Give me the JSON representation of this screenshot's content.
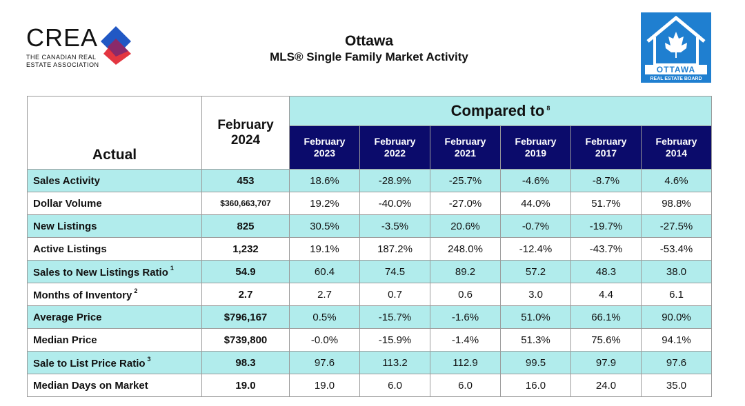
{
  "header": {
    "logo_left": {
      "name": "CREA",
      "tagline_1": "THE CANADIAN REAL",
      "tagline_2": "ESTATE ASSOCIATION"
    },
    "title": "Ottawa",
    "subtitle": "MLS® Single Family Market Activity",
    "logo_right": {
      "name": "OTTAWA",
      "tagline": "REAL ESTATE BOARD"
    }
  },
  "table": {
    "actual_label": "Actual",
    "current": {
      "month": "February",
      "year": "2024"
    },
    "compared_label": "Compared to",
    "compared_note": "8",
    "periods": [
      {
        "month": "February",
        "year": "2023"
      },
      {
        "month": "February",
        "year": "2022"
      },
      {
        "month": "February",
        "year": "2021"
      },
      {
        "month": "February",
        "year": "2019"
      },
      {
        "month": "February",
        "year": "2017"
      },
      {
        "month": "February",
        "year": "2014"
      }
    ],
    "rows": [
      {
        "label": "Sales Activity",
        "current": "453",
        "values": [
          "18.6%",
          "-28.9%",
          "-25.7%",
          "-4.6%",
          "-8.7%",
          "4.6%"
        ]
      },
      {
        "label": "Dollar Volume",
        "current": "$360,663,707",
        "values": [
          "19.2%",
          "-40.0%",
          "-27.0%",
          "44.0%",
          "51.7%",
          "98.8%"
        ]
      },
      {
        "label": "New Listings",
        "current": "825",
        "values": [
          "30.5%",
          "-3.5%",
          "20.6%",
          "-0.7%",
          "-19.7%",
          "-27.5%"
        ]
      },
      {
        "label": "Active Listings",
        "current": "1,232",
        "values": [
          "19.1%",
          "187.2%",
          "248.0%",
          "-12.4%",
          "-43.7%",
          "-53.4%"
        ]
      },
      {
        "label": "Sales to New Listings Ratio",
        "note": "1",
        "current": "54.9",
        "values": [
          "60.4",
          "74.5",
          "89.2",
          "57.2",
          "48.3",
          "38.0"
        ]
      },
      {
        "label": "Months of Inventory",
        "note": "2",
        "current": "2.7",
        "values": [
          "2.7",
          "0.7",
          "0.6",
          "3.0",
          "4.4",
          "6.1"
        ]
      },
      {
        "label": "Average Price",
        "current": "$796,167",
        "values": [
          "0.5%",
          "-15.7%",
          "-1.6%",
          "51.0%",
          "66.1%",
          "90.0%"
        ]
      },
      {
        "label": "Median Price",
        "current": "$739,800",
        "values": [
          "-0.0%",
          "-15.9%",
          "-1.4%",
          "51.3%",
          "75.6%",
          "94.1%"
        ]
      },
      {
        "label": "Sale to List Price Ratio",
        "note": "3",
        "current": "98.3",
        "values": [
          "97.6",
          "113.2",
          "112.9",
          "99.5",
          "97.9",
          "97.6"
        ]
      },
      {
        "label": "Median Days on Market",
        "current": "19.0",
        "values": [
          "19.0",
          "6.0",
          "6.0",
          "16.0",
          "24.0",
          "35.0"
        ]
      }
    ]
  }
}
